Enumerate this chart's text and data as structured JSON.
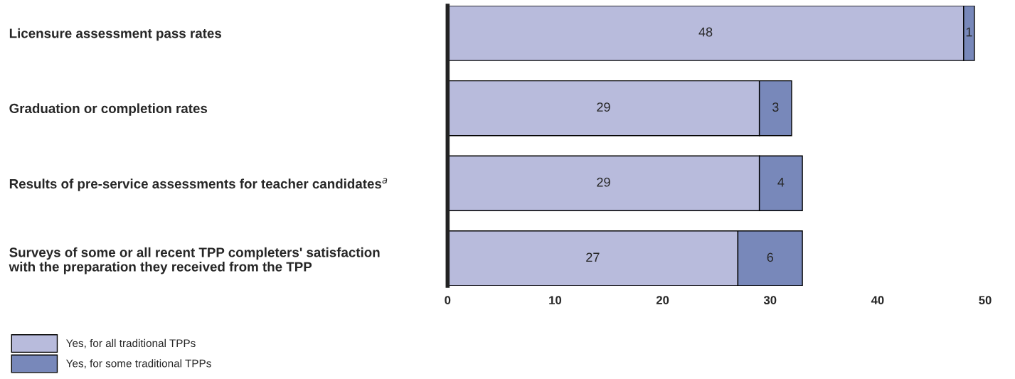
{
  "chart_data": {
    "type": "bar",
    "orientation": "horizontal",
    "stacked": true,
    "categories": [
      "Licensure assessment pass rates",
      "Graduation or completion rates",
      "Results of pre-service assessments for teacher candidates$^{a}$",
      "Surveys of some or all recent TPP completers' satisfaction\nwith the preparation they received from the TPP"
    ],
    "series": [
      {
        "name": "Yes, for all traditional TPPs",
        "color": "#b8bbdc",
        "values": [
          48,
          29,
          29,
          27
        ]
      },
      {
        "name": "Yes, for some traditional TPPs",
        "color": "#7888ba",
        "values": [
          1,
          3,
          4,
          6
        ]
      }
    ],
    "xlim": [
      0,
      50
    ],
    "xticks": [
      0,
      10,
      20,
      30,
      40,
      50
    ],
    "data_labels": true,
    "grid": false,
    "legend": "bottom left"
  }
}
